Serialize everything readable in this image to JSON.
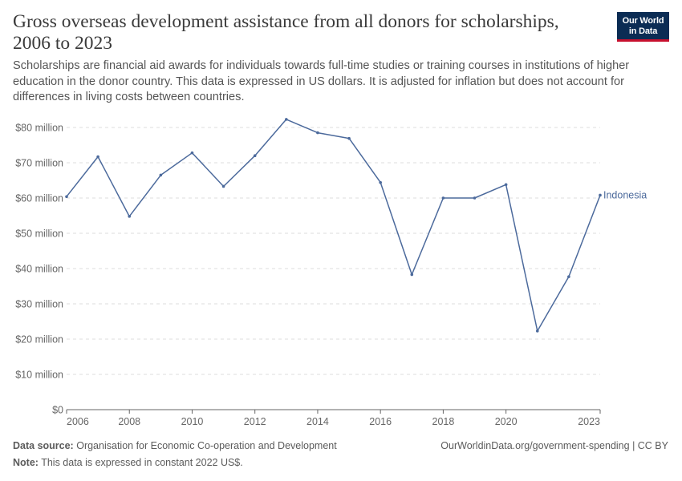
{
  "header": {
    "title": "Gross overseas development assistance from all donors for scholarships, 2006 to 2023",
    "subtitle": "Scholarships are financial aid awards for individuals towards full-time studies or training courses in institutions of higher education in the donor country. This data is expressed in US dollars. It is adjusted for inflation but does not account for differences in living costs between countries."
  },
  "logo": {
    "line1": "Our World",
    "line2": "in Data"
  },
  "footer": {
    "source_label": "Data source:",
    "source_text": "Organisation for Economic Co-operation and Development",
    "note_label": "Note:",
    "note_text": "This data is expressed in constant 2022 US$.",
    "credit": "OurWorldinData.org/government-spending | CC BY"
  },
  "colors": {
    "series": "#4c6a9c",
    "grid": "#dddddd",
    "axis": "#666666",
    "tick_text": "#666666"
  },
  "chart_data": {
    "type": "line",
    "title": "Gross overseas development assistance from all donors for scholarships, 2006 to 2023",
    "xlim": [
      2006,
      2023
    ],
    "ylim": [
      0,
      80000000
    ],
    "x_ticks": [
      2006,
      2008,
      2010,
      2012,
      2014,
      2016,
      2018,
      2020,
      2023
    ],
    "y_ticks": [
      {
        "value": 0,
        "label": "$0"
      },
      {
        "value": 10000000,
        "label": "$10 million"
      },
      {
        "value": 20000000,
        "label": "$20 million"
      },
      {
        "value": 30000000,
        "label": "$30 million"
      },
      {
        "value": 40000000,
        "label": "$40 million"
      },
      {
        "value": 50000000,
        "label": "$50 million"
      },
      {
        "value": 60000000,
        "label": "$60 million"
      },
      {
        "value": 70000000,
        "label": "$70 million"
      },
      {
        "value": 80000000,
        "label": "$80 million"
      }
    ],
    "grid": true,
    "legend": "line-end label",
    "series": [
      {
        "name": "Indonesia",
        "x": [
          2006,
          2007,
          2008,
          2009,
          2010,
          2011,
          2012,
          2013,
          2014,
          2015,
          2016,
          2017,
          2018,
          2019,
          2020,
          2021,
          2022,
          2023
        ],
        "values": [
          60400000,
          71700000,
          54800000,
          66500000,
          72800000,
          63300000,
          72000000,
          82300000,
          78500000,
          76900000,
          64400000,
          38300000,
          60000000,
          60000000,
          63800000,
          22300000,
          37700000,
          60800000
        ]
      }
    ]
  }
}
